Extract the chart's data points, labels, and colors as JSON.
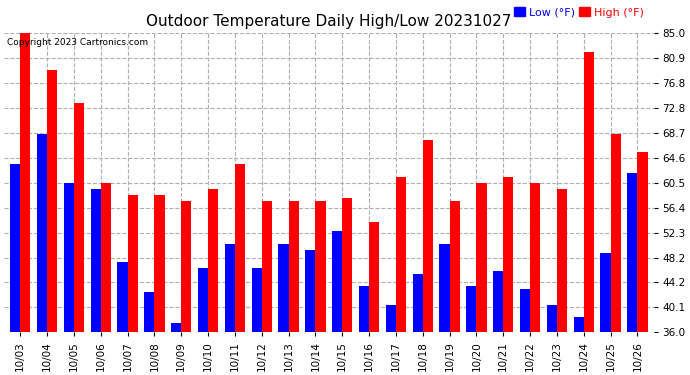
{
  "title": "Outdoor Temperature Daily High/Low 20231027",
  "copyright": "Copyright 2023 Cartronics.com",
  "dates": [
    "10/03",
    "10/04",
    "10/05",
    "10/06",
    "10/07",
    "10/08",
    "10/09",
    "10/10",
    "10/11",
    "10/12",
    "10/13",
    "10/14",
    "10/15",
    "10/16",
    "10/17",
    "10/18",
    "10/19",
    "10/20",
    "10/21",
    "10/22",
    "10/23",
    "10/24",
    "10/25",
    "10/26"
  ],
  "high": [
    85.0,
    79.0,
    73.5,
    60.5,
    58.5,
    58.5,
    57.5,
    59.5,
    63.5,
    57.5,
    57.5,
    57.5,
    58.0,
    54.0,
    61.5,
    67.5,
    57.5,
    60.5,
    61.5,
    60.5,
    59.5,
    82.0,
    68.5,
    65.5
  ],
  "low": [
    63.5,
    68.5,
    60.5,
    59.5,
    47.5,
    42.5,
    37.5,
    46.5,
    50.5,
    46.5,
    50.5,
    49.5,
    52.5,
    43.5,
    40.5,
    45.5,
    50.5,
    43.5,
    46.0,
    43.0,
    40.5,
    38.5,
    49.0,
    62.0
  ],
  "ymin": 36.0,
  "ylim": [
    36.0,
    85.0
  ],
  "yticks": [
    36.0,
    40.1,
    44.2,
    48.2,
    52.3,
    56.4,
    60.5,
    64.6,
    68.7,
    72.8,
    76.8,
    80.9,
    85.0
  ],
  "bg_color": "#ffffff",
  "plot_bg": "#ffffff",
  "grid_color": "#b0b0b0",
  "bar_width": 0.38,
  "high_color": "#ff0000",
  "low_color": "#0000ff",
  "title_fontsize": 11,
  "tick_fontsize": 7.5,
  "label_fontsize": 8,
  "copyright_fontsize": 6.5
}
